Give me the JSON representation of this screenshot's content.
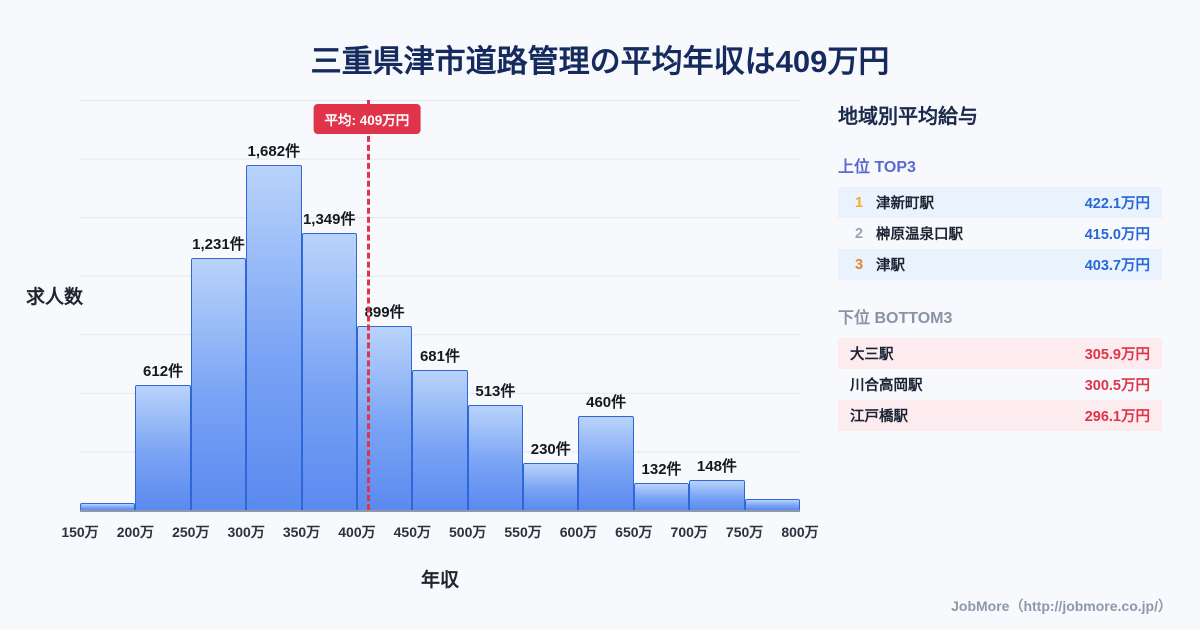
{
  "title": "三重県津市道路管理の平均年収は409万円",
  "chart_data": {
    "type": "bar",
    "title": "三重県津市道路管理の平均年収は409万円",
    "xlabel": "年収",
    "ylabel": "求人数",
    "bin_edges_labels": [
      "150万",
      "200万",
      "250万",
      "300万",
      "350万",
      "400万",
      "450万",
      "500万",
      "550万",
      "600万",
      "650万",
      "700万",
      "750万",
      "800万"
    ],
    "values": [
      35,
      612,
      1231,
      1682,
      1349,
      899,
      681,
      513,
      230,
      460,
      132,
      148,
      55
    ],
    "bar_labels": [
      "",
      "612件",
      "1,231件",
      "1,682件",
      "1,349件",
      "899件",
      "681件",
      "513件",
      "230件",
      "460件",
      "132件",
      "148件",
      ""
    ],
    "xmin": 150,
    "xmax": 800,
    "ymax": 2000,
    "grid": "horizontal",
    "average": 409,
    "average_label": "平均: 409万円",
    "bar_fill_top": "#b9d3fa",
    "bar_fill_bottom": "#5b8af0",
    "bar_border": "#2f67d8",
    "average_line_color": "#e0344a"
  },
  "panel": {
    "title": "地域別平均給与",
    "top_section": {
      "label": "上位 TOP3",
      "rows": [
        {
          "rank": "1",
          "name": "津新町駅",
          "value": "422.1万円"
        },
        {
          "rank": "2",
          "name": "榊原温泉口駅",
          "value": "415.0万円"
        },
        {
          "rank": "3",
          "name": "津駅",
          "value": "403.7万円"
        }
      ]
    },
    "bottom_section": {
      "label": "下位 BOTTOM3",
      "rows": [
        {
          "name": "大三駅",
          "value": "305.9万円"
        },
        {
          "name": "川合高岡駅",
          "value": "300.5万円"
        },
        {
          "name": "江戸橋駅",
          "value": "296.1万円"
        }
      ]
    }
  },
  "footer": {
    "credit": "JobMore（http://jobmore.co.jp/）"
  }
}
